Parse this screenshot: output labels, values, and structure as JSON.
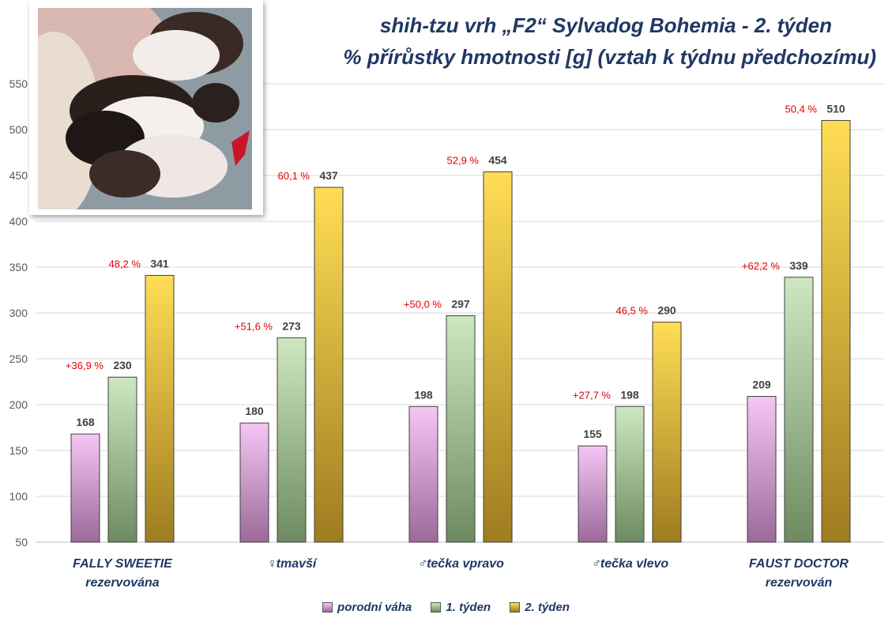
{
  "chart_data": {
    "type": "bar",
    "title": "shih-tzu vrh „F2“ Sylvadog Bohemia - 2. týden",
    "subtitle": "% přírůstky hmotnosti [g] (vztah k týdnu předchozímu)",
    "ylim": [
      50,
      560
    ],
    "yticks": [
      50,
      100,
      150,
      200,
      250,
      300,
      350,
      400,
      450,
      500,
      550
    ],
    "grid": true,
    "legend_position": "bottom",
    "categories": [
      {
        "line1": "FALLY SWEETIE",
        "line2": "rezervována"
      },
      {
        "line1": "♀tmavší",
        "line2": ""
      },
      {
        "line1": "♂tečka vpravo",
        "line2": ""
      },
      {
        "line1": "♂tečka vlevo",
        "line2": ""
      },
      {
        "line1": "FAUST DOCTOR",
        "line2": "rezervován"
      }
    ],
    "series": [
      {
        "name": "porodní váha",
        "values": [
          168,
          180,
          198,
          155,
          209
        ],
        "color_top": "#F5C6F5",
        "color_bottom": "#9C6A9A"
      },
      {
        "name": "1. týden",
        "values": [
          230,
          273,
          297,
          198,
          339
        ],
        "color_top": "#CDE8C0",
        "color_bottom": "#6E8A60"
      },
      {
        "name": "2. týden",
        "values": [
          341,
          437,
          454,
          290,
          510
        ],
        "color_top": "#FFDD55",
        "color_bottom": "#9E7C20"
      }
    ],
    "growth_week1": [
      "+36,9 %",
      "+51,6 %",
      "+50,0 %",
      "+27,7 %",
      "+62,2 %"
    ],
    "growth_week2": [
      "48,2 %",
      "60,1 %",
      "52,9 %",
      "46,5 %",
      "50,4 %"
    ],
    "growth_placement": [
      "w1",
      "w1",
      "w1",
      "w1",
      "w1"
    ],
    "growth_week2_placement": [
      "w2",
      "w2",
      "w2",
      "w2",
      "w2"
    ],
    "growth_color": "#E00000",
    "value_label_color": "#404040",
    "axis_text_color": "#595959",
    "gridline_color": "#D9D9D9"
  }
}
